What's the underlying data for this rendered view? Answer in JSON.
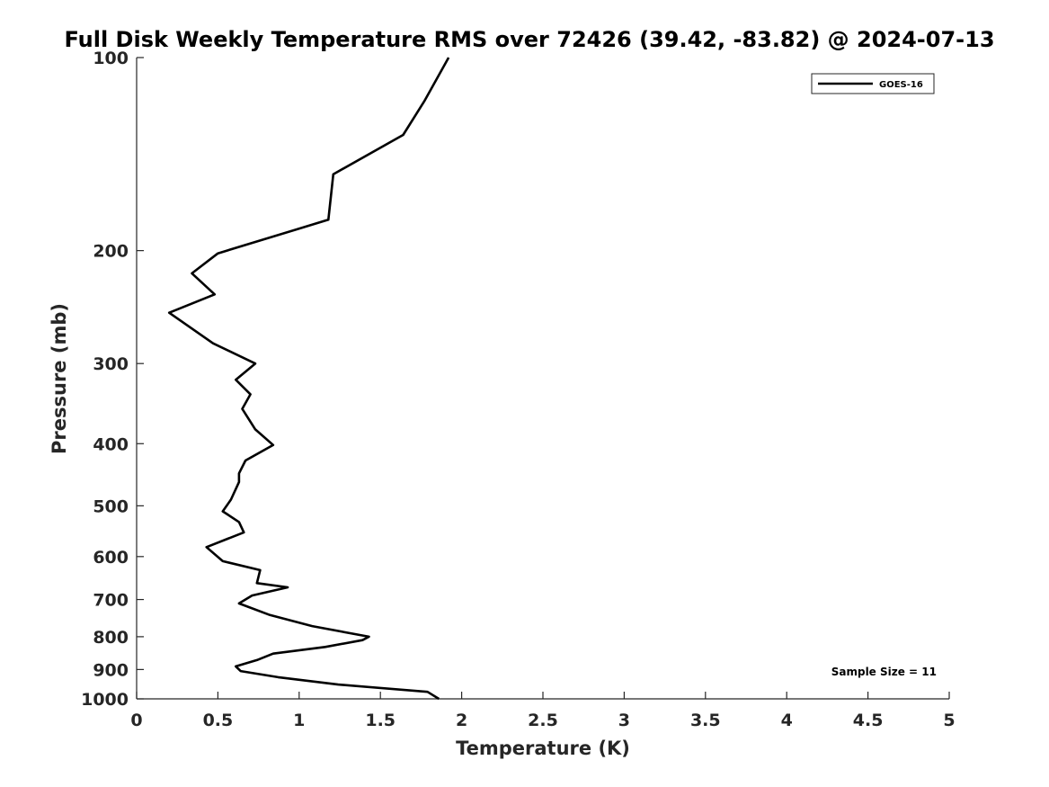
{
  "chart_data": {
    "type": "line",
    "title": "Full Disk Weekly Temperature RMS over 72426 (39.42, -83.82) @ 2024-07-13",
    "xlabel": "Temperature (K)",
    "ylabel": "Pressure (mb)",
    "xlim": [
      0,
      5
    ],
    "ylim": [
      1000,
      100
    ],
    "yscale": "log",
    "xticks": [
      "0",
      "0.5",
      "1",
      "1.5",
      "2",
      "2.5",
      "3",
      "3.5",
      "4",
      "4.5",
      "5"
    ],
    "yticks": [
      "100",
      "200",
      "300",
      "400",
      "500",
      "600",
      "700",
      "800",
      "900",
      "1000"
    ],
    "grid": false,
    "legend_position": "top-right",
    "annotation": "Sample Size = 11",
    "series": [
      {
        "name": "GOES-16",
        "color": "#000000",
        "points": [
          [
            1.92,
            100
          ],
          [
            1.77,
            117
          ],
          [
            1.64,
            132
          ],
          [
            1.21,
            152
          ],
          [
            1.18,
            179
          ],
          [
            0.5,
            202
          ],
          [
            0.34,
            217
          ],
          [
            0.48,
            234
          ],
          [
            0.2,
            250
          ],
          [
            0.47,
            279
          ],
          [
            0.73,
            300
          ],
          [
            0.61,
            318
          ],
          [
            0.7,
            335
          ],
          [
            0.65,
            353
          ],
          [
            0.73,
            380
          ],
          [
            0.84,
            402
          ],
          [
            0.67,
            425
          ],
          [
            0.63,
            445
          ],
          [
            0.63,
            459
          ],
          [
            0.58,
            489
          ],
          [
            0.53,
            510
          ],
          [
            0.63,
            530
          ],
          [
            0.66,
            550
          ],
          [
            0.43,
            580
          ],
          [
            0.53,
            610
          ],
          [
            0.76,
            630
          ],
          [
            0.74,
            660
          ],
          [
            0.93,
            670
          ],
          [
            0.71,
            690
          ],
          [
            0.63,
            710
          ],
          [
            0.82,
            740
          ],
          [
            1.08,
            770
          ],
          [
            1.43,
            800
          ],
          [
            1.39,
            810
          ],
          [
            1.16,
            830
          ],
          [
            0.84,
            850
          ],
          [
            0.74,
            870
          ],
          [
            0.61,
            890
          ],
          [
            0.64,
            905
          ],
          [
            0.87,
            925
          ],
          [
            1.24,
            950
          ],
          [
            1.79,
            975
          ],
          [
            1.86,
            1000
          ]
        ]
      }
    ]
  }
}
